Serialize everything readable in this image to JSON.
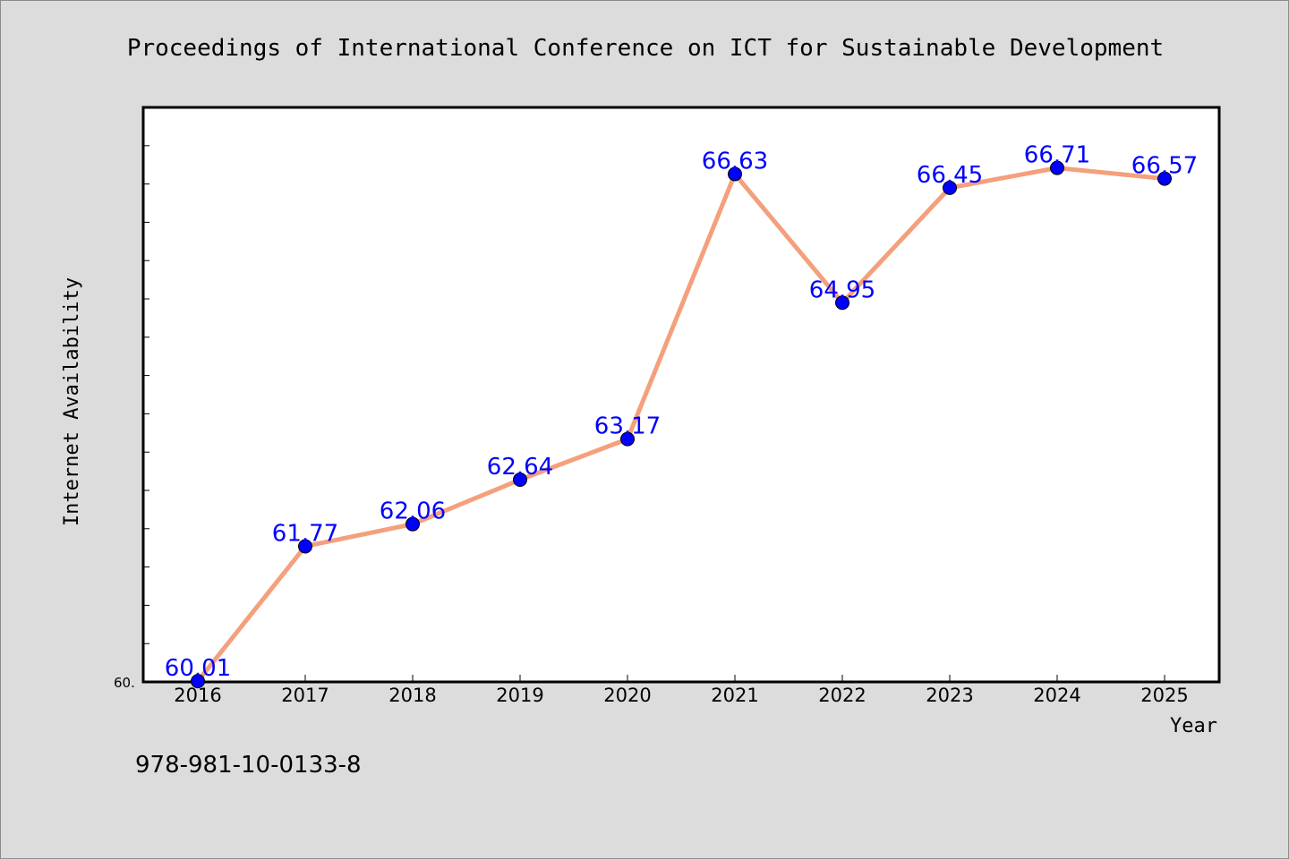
{
  "chart_data": {
    "type": "line",
    "title": "Proceedings of International Conference on ICT for Sustainable Development",
    "xlabel": "Year",
    "ylabel": "Internet Availability",
    "categories": [
      "2016",
      "2017",
      "2018",
      "2019",
      "2020",
      "2021",
      "2022",
      "2023",
      "2024",
      "2025"
    ],
    "series": [
      {
        "values": [
          60.01,
          61.77,
          62.06,
          62.64,
          63.17,
          66.63,
          64.95,
          66.45,
          66.71,
          66.57
        ],
        "labels": [
          "60.01",
          "61.77",
          "62.06",
          "62.64",
          "63.17",
          "66.63",
          "64.95",
          "66.45",
          "66.71",
          "66.57"
        ]
      }
    ],
    "ylim": [
      60.0,
      67.5
    ],
    "y_tick_label": "60.",
    "grid": false,
    "legend": "none",
    "colors": {
      "line": "#f4a07c",
      "marker": "#0000ff",
      "data_label": "#0000ff",
      "plot_background": "#ffffff",
      "page_background": "#dcdcdc"
    }
  },
  "footer_text": "978-981-10-0133-8"
}
